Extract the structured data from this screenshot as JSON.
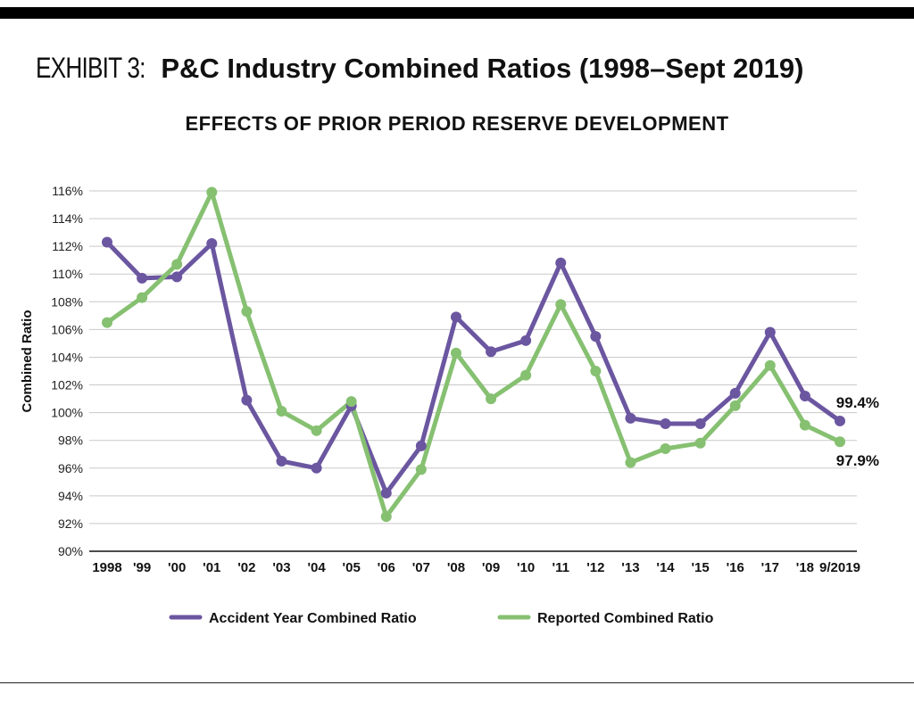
{
  "header": {
    "exhibit_label": "EXHIBIT 3:",
    "title": "P&C Industry Combined Ratios (1998–Sept 2019)",
    "subtitle": "EFFECTS OF PRIOR PERIOD RESERVE DEVELOPMENT"
  },
  "chart_data": {
    "type": "line",
    "ylabel": "Combined Ratio",
    "xlabel": "",
    "ylim": [
      90,
      116
    ],
    "yticks": [
      90,
      92,
      94,
      96,
      98,
      100,
      102,
      104,
      106,
      108,
      110,
      112,
      114,
      116
    ],
    "ytick_labels": [
      "90%",
      "92%",
      "94%",
      "96%",
      "98%",
      "100%",
      "102%",
      "104%",
      "106%",
      "108%",
      "110%",
      "112%",
      "114%",
      "116%"
    ],
    "grid": true,
    "legend_position": "bottom",
    "categories": [
      "1998",
      "'99",
      "'00",
      "'01",
      "'02",
      "'03",
      "'04",
      "'05",
      "'06",
      "'07",
      "'08",
      "'09",
      "'10",
      "'11",
      "'12",
      "'13",
      "'14",
      "'15",
      "'16",
      "'17",
      "'18",
      "9/2019"
    ],
    "series": [
      {
        "name": "Accident Year Combined Ratio",
        "color": "#6b56a0",
        "values": [
          112.3,
          109.7,
          109.8,
          112.2,
          100.9,
          96.5,
          96.0,
          100.5,
          94.2,
          97.6,
          106.9,
          104.4,
          105.2,
          110.8,
          105.5,
          99.6,
          99.2,
          99.2,
          101.4,
          105.8,
          101.2,
          99.4
        ]
      },
      {
        "name": "Reported Combined Ratio",
        "color": "#86c071",
        "values": [
          106.5,
          108.3,
          110.7,
          115.9,
          107.3,
          100.1,
          98.7,
          100.8,
          92.5,
          95.9,
          104.3,
          101.0,
          102.7,
          107.8,
          103.0,
          96.4,
          97.4,
          97.8,
          100.5,
          103.4,
          99.1,
          97.9
        ]
      }
    ],
    "annotations": [
      {
        "series": 0,
        "index": 21,
        "text": "99.4%"
      },
      {
        "series": 1,
        "index": 21,
        "text": "97.9%"
      }
    ]
  }
}
